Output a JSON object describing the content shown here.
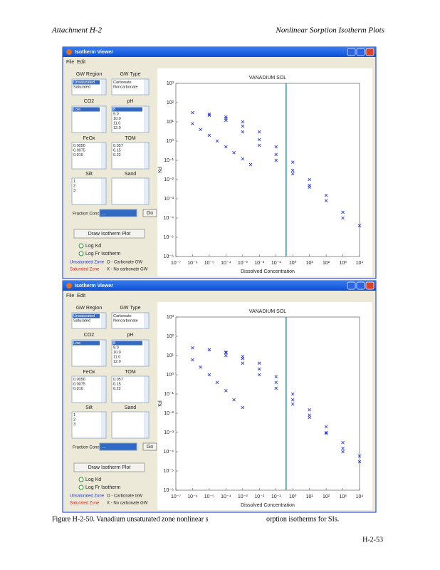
{
  "header": {
    "left": "Attachment H-2",
    "right": "Nonlinear Sorption Isotherm Plots"
  },
  "windows": [
    {
      "title": "Isotherm Viewer",
      "menu": [
        "File",
        "Edit"
      ],
      "lists": [
        {
          "label": "GW Region",
          "items": [
            "Unsaturated",
            "Saturated"
          ]
        },
        {
          "label": "GW Type",
          "items": [
            "Carbonate",
            "Noncarbonate"
          ]
        },
        {
          "label": "CO2",
          "items": [
            "Low"
          ]
        },
        {
          "label": "pH",
          "items": [
            "8",
            "9.0",
            "10.0",
            "11.0",
            "12.0"
          ]
        },
        {
          "label": "FeOx",
          "items": [
            "0.0050",
            "0.0075",
            "0.010"
          ]
        },
        {
          "label": "TOM",
          "items": [
            "0.057",
            "0.15",
            "0.22"
          ]
        },
        {
          "label": "Silt",
          "items": [
            "1",
            "2",
            "3"
          ]
        },
        {
          "label": "Sand",
          "items": []
        }
      ],
      "fraction_label": "Fraction Concentration",
      "dropdown": "...",
      "go_button": "Go",
      "draw_button": "Draw Isotherm Plot",
      "radios": [
        "Log Kd",
        "Log Fr Isotherm"
      ],
      "legend": [
        {
          "text": "Unsaturated Zone",
          "color": "#2233cc"
        },
        {
          "text": "O - Carbonate GW",
          "color": "#222222"
        },
        {
          "text": "Saturated Zone",
          "color": "#dd2222"
        },
        {
          "text": "X - No carbonate GW",
          "color": "#222222"
        }
      ],
      "plot": {
        "type": "scatter",
        "title": "VANADIUM SOL",
        "xlabel": "Dissolved Concentration",
        "ylabel": "Kd",
        "log_x": true,
        "log_y": true,
        "xlim": [
          1e-07,
          10000
        ],
        "ylim": [
          1e-06,
          1000
        ],
        "xticks": [
          {
            "value": 1e-07,
            "label": "10⁻⁷"
          },
          {
            "value": 1e-06,
            "label": "10⁻⁶"
          },
          {
            "value": 1e-05,
            "label": "10⁻⁵"
          },
          {
            "value": 0.0001,
            "label": "10⁻⁴"
          },
          {
            "value": 0.001,
            "label": "10⁻³"
          },
          {
            "value": 0.01,
            "label": "10⁻²"
          },
          {
            "value": 0.1,
            "label": "10⁻¹"
          },
          {
            "value": 1,
            "label": "10⁰"
          },
          {
            "value": 10,
            "label": "10¹"
          },
          {
            "value": 100,
            "label": "10²"
          },
          {
            "value": 1000,
            "label": "10³"
          },
          {
            "value": 10000,
            "label": "10⁴"
          }
        ],
        "yticks": [
          {
            "value": 1e-06,
            "label": "10⁻⁶"
          },
          {
            "value": 1e-05,
            "label": "10⁻⁵"
          },
          {
            "value": 0.0001,
            "label": "10⁻⁴"
          },
          {
            "value": 0.001,
            "label": "10⁻³"
          },
          {
            "value": 0.01,
            "label": "10⁻²"
          },
          {
            "value": 0.1,
            "label": "10⁻¹"
          },
          {
            "value": 1,
            "label": "10⁰"
          },
          {
            "value": 10,
            "label": "10¹"
          },
          {
            "value": 100,
            "label": "10²"
          },
          {
            "value": 1000,
            "label": "10³"
          }
        ],
        "vline": 0.4,
        "vline_color": "#1a8fd0",
        "series": [
          {
            "color": "#1020e0",
            "x": [
              1e-06,
              1e-05,
              0.0001,
              0.001,
              0.01,
              0.1,
              1,
              10,
              100,
              1000,
              10000,
              1e-06,
              3e-06,
              1e-05,
              3e-05,
              0.0001,
              0.0003,
              0.001,
              0.003,
              1e-05,
              0.0001,
              0.001,
              0.01,
              0.1,
              1,
              10,
              100,
              1000,
              0.0001,
              0.001,
              0.01,
              0.1,
              1,
              10
            ],
            "y": [
              30,
              22,
              15,
              10,
              3,
              0.5,
              0.08,
              0.01,
              0.0015,
              0.0002,
              4e-05,
              8,
              4,
              2,
              1,
              0.5,
              0.25,
              0.12,
              0.06,
              25,
              18,
              6,
              1.2,
              0.2,
              0.03,
              0.005,
              0.0008,
              0.0001,
              12,
              3,
              0.6,
              0.1,
              0.02,
              0.004
            ]
          }
        ]
      }
    },
    {
      "title": "Isotherm Viewer",
      "menu": [
        "File",
        "Edit"
      ],
      "lists": [
        {
          "label": "GW Region",
          "items": [
            "Unsaturated",
            "Saturated"
          ]
        },
        {
          "label": "GW Type",
          "items": [
            "Carbonate",
            "Noncarbonate"
          ]
        },
        {
          "label": "CO2",
          "items": [
            "Low"
          ]
        },
        {
          "label": "pH",
          "items": [
            "8",
            "9.0",
            "10.0",
            "11.0",
            "12.0"
          ]
        },
        {
          "label": "FeOx",
          "items": [
            "0.0050",
            "0.0075",
            "0.010"
          ]
        },
        {
          "label": "TOM",
          "items": [
            "0.057",
            "0.15",
            "0.22"
          ]
        },
        {
          "label": "Silt",
          "items": [
            "1",
            "2",
            "3"
          ]
        },
        {
          "label": "Sand",
          "items": []
        }
      ],
      "fraction_label": "Fraction Concentration",
      "dropdown": "...",
      "go_button": "Go",
      "draw_button": "Draw Isotherm Plot",
      "radios": [
        "Log Kd",
        "Log Fr Isotherm"
      ],
      "legend": [
        {
          "text": "Unsaturated Zone",
          "color": "#2233cc"
        },
        {
          "text": "O - Carbonate GW",
          "color": "#222222"
        },
        {
          "text": "Saturated Zone",
          "color": "#dd2222"
        },
        {
          "text": "X - No carbonate GW",
          "color": "#222222"
        }
      ],
      "plot": {
        "type": "scatter",
        "title": "VANADIUM SOL",
        "xlabel": "Dissolved Concentration",
        "ylabel": "Kd",
        "log_x": true,
        "log_y": true,
        "xlim": [
          1e-07,
          10000
        ],
        "ylim": [
          1e-06,
          1000
        ],
        "xticks": [
          {
            "value": 1e-07,
            "label": "10⁻⁷"
          },
          {
            "value": 1e-06,
            "label": "10⁻⁶"
          },
          {
            "value": 1e-05,
            "label": "10⁻⁵"
          },
          {
            "value": 0.0001,
            "label": "10⁻⁴"
          },
          {
            "value": 0.001,
            "label": "10⁻³"
          },
          {
            "value": 0.01,
            "label": "10⁻²"
          },
          {
            "value": 0.1,
            "label": "10⁻¹"
          },
          {
            "value": 1,
            "label": "10⁰"
          },
          {
            "value": 10,
            "label": "10¹"
          },
          {
            "value": 100,
            "label": "10²"
          },
          {
            "value": 1000,
            "label": "10³"
          },
          {
            "value": 10000,
            "label": "10⁴"
          }
        ],
        "yticks": [
          {
            "value": 1e-06,
            "label": "10⁻⁶"
          },
          {
            "value": 1e-05,
            "label": "10⁻⁵"
          },
          {
            "value": 0.0001,
            "label": "10⁻⁴"
          },
          {
            "value": 0.001,
            "label": "10⁻³"
          },
          {
            "value": 0.01,
            "label": "10⁻²"
          },
          {
            "value": 0.1,
            "label": "10⁻¹"
          },
          {
            "value": 1,
            "label": "10⁰"
          },
          {
            "value": 10,
            "label": "10¹"
          },
          {
            "value": 100,
            "label": "10²"
          },
          {
            "value": 1000,
            "label": "10³"
          }
        ],
        "vline": 0.4,
        "vline_color": "#1a8fd0",
        "series": [
          {
            "color": "#1020e0",
            "x": [
              1e-06,
              1e-05,
              0.0001,
              0.001,
              0.01,
              0.1,
              1,
              10,
              100,
              1000,
              10000,
              1e-06,
              3e-06,
              1e-05,
              3e-05,
              0.0001,
              0.0003,
              0.001,
              1e-05,
              0.0001,
              0.001,
              0.01,
              0.1,
              1,
              10,
              100,
              1000,
              10000,
              0.0001,
              0.001,
              0.01,
              0.1,
              1,
              10,
              100,
              1000
            ],
            "y": [
              25,
              20,
              14,
              9,
              4,
              0.8,
              0.1,
              0.015,
              0.002,
              0.0003,
              6e-05,
              6,
              2.5,
              1,
              0.4,
              0.15,
              0.05,
              0.02,
              20,
              15,
              7,
              2,
              0.4,
              0.05,
              0.008,
              0.001,
              0.00015,
              3e-05,
              10,
              4,
              1,
              0.2,
              0.03,
              0.006,
              0.0009,
              0.0001
            ]
          }
        ]
      }
    }
  ],
  "caption": [
    "Figure H-2-50. Vanadium unsaturated zone nonlinear s",
    "orption isotherms for SIs."
  ],
  "page_number": "H-2-53"
}
